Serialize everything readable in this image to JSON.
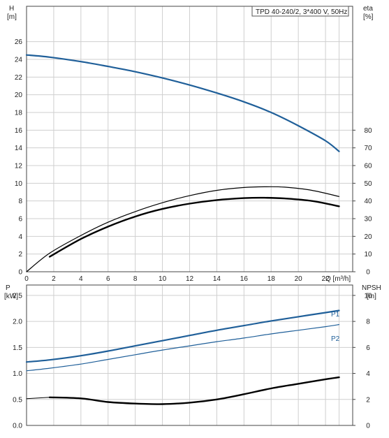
{
  "chart_data": [
    {
      "type": "line",
      "title": "TPD 40-240/2, 3*400 V, 50Hz",
      "xlabel": "Q [m³/h]",
      "x_ticks": [
        "0",
        "2",
        "4",
        "6",
        "8",
        "10",
        "12",
        "14",
        "16",
        "18",
        "20",
        "22"
      ],
      "xlim": [
        0,
        24
      ],
      "y_left": {
        "label": "H",
        "unit": "[m]",
        "lim": [
          0,
          30
        ],
        "ticks": [
          "0",
          "2",
          "4",
          "6",
          "8",
          "10",
          "12",
          "14",
          "16",
          "18",
          "20",
          "22",
          "24",
          "26"
        ]
      },
      "y_right": {
        "label": "eta",
        "unit": "[%]",
        "lim": [
          0,
          150
        ],
        "ticks": [
          "0",
          "10",
          "20",
          "30",
          "40",
          "50",
          "60",
          "70",
          "80"
        ]
      },
      "grid": true,
      "series": [
        {
          "axis": "left",
          "color": "#1f5f99",
          "width": 2.2,
          "x": [
            0,
            1.7,
            4,
            6,
            8,
            10,
            12,
            14,
            16,
            18,
            20,
            22,
            23
          ],
          "y": [
            24.5,
            24.25,
            23.75,
            23.2,
            22.6,
            21.9,
            21.1,
            20.2,
            19.2,
            18.0,
            16.5,
            14.8,
            13.6
          ]
        },
        {
          "axis": "right",
          "color": "#000000",
          "width": 1.2,
          "x": [
            0,
            1.7,
            4,
            6,
            8,
            10,
            12,
            14,
            16,
            17.5,
            19,
            21,
            23
          ],
          "y": [
            0,
            10.5,
            20.5,
            28,
            34,
            39,
            43,
            46,
            47.6,
            48,
            47.8,
            46,
            42.5
          ]
        },
        {
          "axis": "right",
          "color": "#000000",
          "width": 2.4,
          "x": [
            1.7,
            4,
            6,
            8,
            10,
            12,
            14,
            16,
            17.5,
            19,
            21,
            23
          ],
          "y": [
            8.5,
            18.5,
            25.5,
            31.2,
            35.5,
            38.5,
            40.5,
            41.6,
            41.8,
            41.4,
            40,
            37
          ]
        }
      ]
    },
    {
      "type": "line",
      "title": "",
      "xlim": [
        0,
        24
      ],
      "y_left": {
        "label": "P",
        "unit": "[kW]",
        "lim": [
          0,
          2.7
        ],
        "ticks": [
          "0.0",
          "0.5",
          "1.0",
          "1.5",
          "2.0",
          "2.5"
        ]
      },
      "y_right": {
        "label": "NPSH",
        "unit": "[m]",
        "lim": [
          0,
          10.8
        ],
        "ticks": [
          "0",
          "2",
          "4",
          "6",
          "8",
          "10"
        ]
      },
      "grid": true,
      "series": [
        {
          "name": "P1",
          "axis": "left",
          "color": "#1f5f99",
          "width": 2.2,
          "x": [
            0,
            1.7,
            4,
            6,
            8,
            10,
            12,
            14,
            16,
            18,
            20,
            22,
            23
          ],
          "y": [
            1.22,
            1.26,
            1.34,
            1.43,
            1.53,
            1.63,
            1.73,
            1.83,
            1.92,
            2.01,
            2.09,
            2.17,
            2.21
          ]
        },
        {
          "name": "P2",
          "axis": "left",
          "color": "#1f5f99",
          "width": 1.2,
          "x": [
            0,
            1.7,
            4,
            6,
            8,
            10,
            12,
            14,
            16,
            18,
            20,
            22,
            23
          ],
          "y": [
            1.05,
            1.1,
            1.18,
            1.27,
            1.36,
            1.45,
            1.53,
            1.61,
            1.68,
            1.76,
            1.83,
            1.9,
            1.94
          ]
        },
        {
          "axis": "right",
          "color": "#000000",
          "width": 1.0,
          "x": [
            0,
            1.7
          ],
          "y": [
            2.05,
            2.16
          ]
        },
        {
          "axis": "right",
          "color": "#000000",
          "width": 2.4,
          "x": [
            1.7,
            4,
            6,
            8,
            10,
            12,
            14,
            16,
            18,
            20,
            22,
            23
          ],
          "y": [
            2.16,
            2.08,
            1.8,
            1.68,
            1.64,
            1.75,
            2.0,
            2.4,
            2.85,
            3.2,
            3.55,
            3.7
          ]
        }
      ]
    }
  ]
}
